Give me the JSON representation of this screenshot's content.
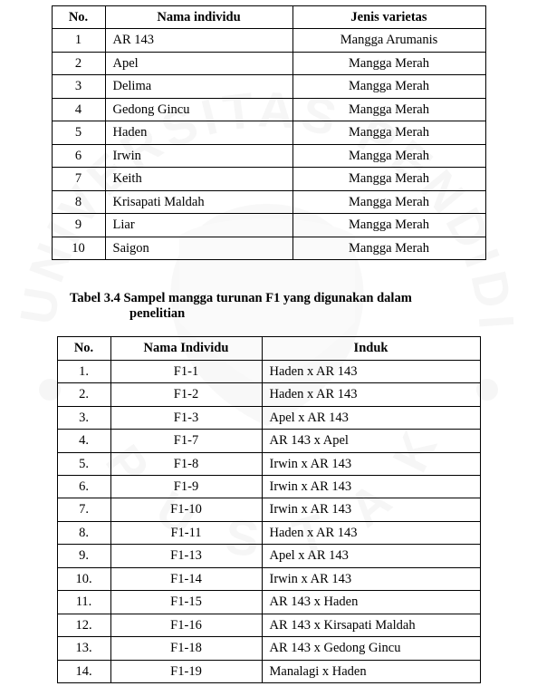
{
  "table1": {
    "headers": {
      "no": "No.",
      "nama": "Nama individu",
      "jenis": "Jenis varietas"
    },
    "rows": [
      {
        "no": "1",
        "nama": "AR 143",
        "jenis": "Mangga Arumanis"
      },
      {
        "no": "2",
        "nama": "Apel",
        "jenis": "Mangga Merah"
      },
      {
        "no": "3",
        "nama": "Delima",
        "jenis": "Mangga Merah"
      },
      {
        "no": "4",
        "nama": "Gedong Gincu",
        "jenis": "Mangga Merah"
      },
      {
        "no": "5",
        "nama": "Haden",
        "jenis": "Mangga Merah"
      },
      {
        "no": "6",
        "nama": "Irwin",
        "jenis": "Mangga Merah"
      },
      {
        "no": "7",
        "nama": "Keith",
        "jenis": "Mangga Merah"
      },
      {
        "no": "8",
        "nama": "Krisapati Maldah",
        "jenis": "Mangga Merah"
      },
      {
        "no": "9",
        "nama": "Liar",
        "jenis": "Mangga Merah"
      },
      {
        "no": "10",
        "nama": "Saigon",
        "jenis": "Mangga Merah"
      }
    ]
  },
  "caption": {
    "line1": "Tabel  3.4  Sampel  mangga  turunan  F1  yang  digunakan  dalam",
    "line2": "penelitian"
  },
  "table2": {
    "headers": {
      "no": "No.",
      "nama": "Nama Individu",
      "induk": "Induk"
    },
    "rows": [
      {
        "no": "1.",
        "nama": "F1-1",
        "induk": "Haden x AR 143"
      },
      {
        "no": "2.",
        "nama": "F1-2",
        "induk": "Haden x AR 143"
      },
      {
        "no": "3.",
        "nama": "F1-3",
        "induk": "Apel x AR 143"
      },
      {
        "no": "4.",
        "nama": "F1-7",
        "induk": "AR 143 x Apel"
      },
      {
        "no": "5.",
        "nama": "F1-8",
        "induk": "Irwin x AR 143"
      },
      {
        "no": "6.",
        "nama": "F1-9",
        "induk": "Irwin x AR 143"
      },
      {
        "no": "7.",
        "nama": "F1-10",
        "induk": "Irwin x AR 143"
      },
      {
        "no": "8.",
        "nama": "F1-11",
        "induk": "Haden x AR 143"
      },
      {
        "no": "9.",
        "nama": "F1-13",
        "induk": "Apel x AR 143"
      },
      {
        "no": "10.",
        "nama": "F1-14",
        "induk": "Irwin x AR 143"
      },
      {
        "no": "11.",
        "nama": "F1-15",
        "induk": "AR 143 x Haden"
      },
      {
        "no": "12.",
        "nama": "F1-16",
        "induk": "AR 143 x Kirsapati Maldah"
      },
      {
        "no": "13.",
        "nama": "F1-18",
        "induk": "AR 143 x Gedong Gincu"
      },
      {
        "no": "14.",
        "nama": "F1-19",
        "induk": "Manalagi x Haden"
      }
    ]
  }
}
